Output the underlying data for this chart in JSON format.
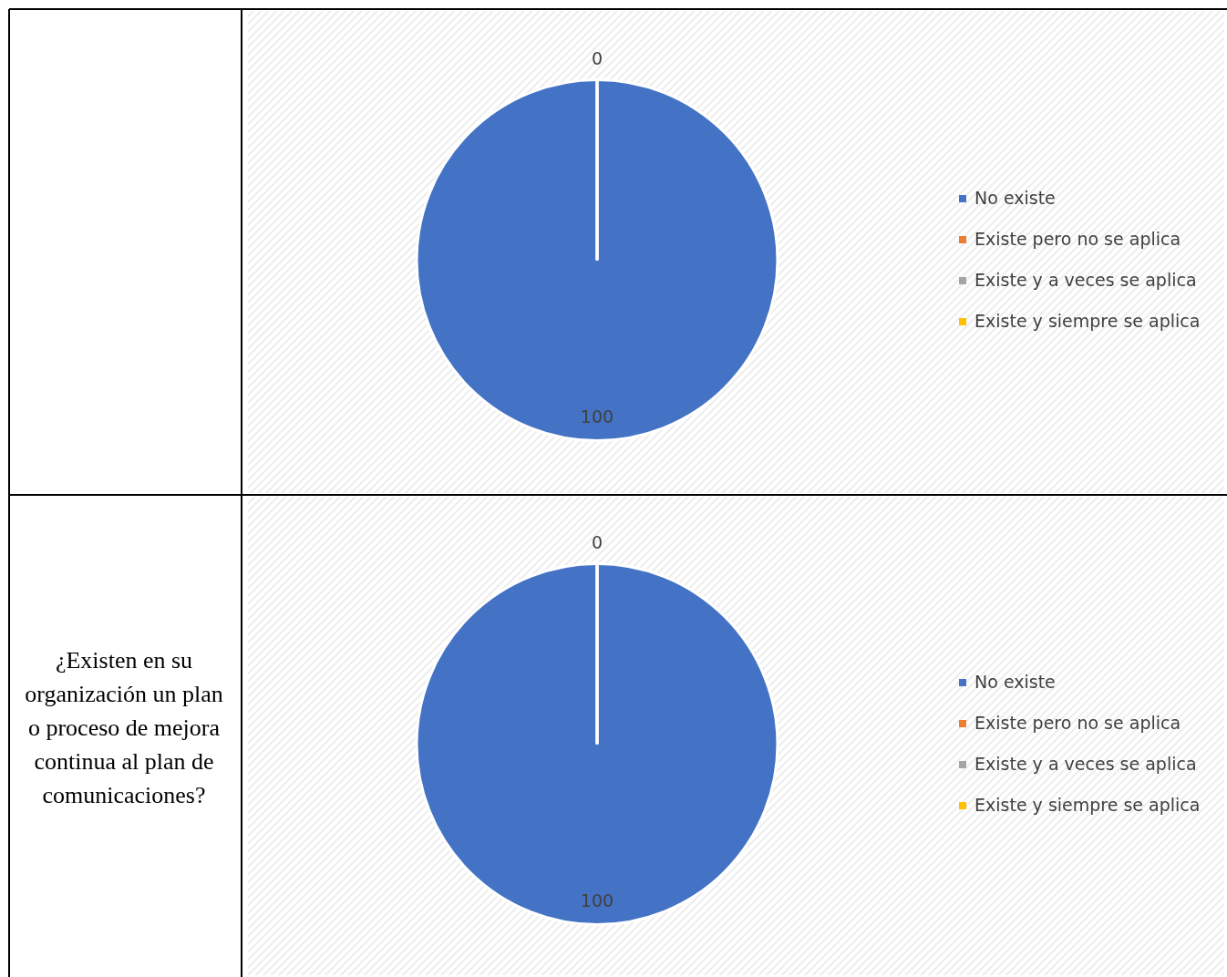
{
  "chart_data": [
    {
      "type": "pie",
      "categories": [
        "No existe",
        "Existe pero no se aplica",
        "Existe y a veces se aplica",
        "Existe y siempre se aplica"
      ],
      "values": [
        100,
        0,
        0,
        0
      ],
      "colors": [
        "#4472c4",
        "#ed7d31",
        "#a5a5a5",
        "#ffc000"
      ],
      "value_labels": [
        "100",
        "0",
        null,
        null
      ],
      "legend": "right"
    },
    {
      "type": "pie",
      "title": "¿Existen en su organización un plan o proceso de mejora continua al plan de comunicaciones?",
      "categories": [
        "No existe",
        "Existe pero no se aplica",
        "Existe y a veces se aplica",
        "Existe y siempre se aplica"
      ],
      "values": [
        100,
        0,
        0,
        0
      ],
      "colors": [
        "#4472c4",
        "#ed7d31",
        "#a5a5a5",
        "#ffc000"
      ],
      "value_labels": [
        "100",
        "0",
        null,
        null
      ],
      "legend": "right"
    }
  ]
}
